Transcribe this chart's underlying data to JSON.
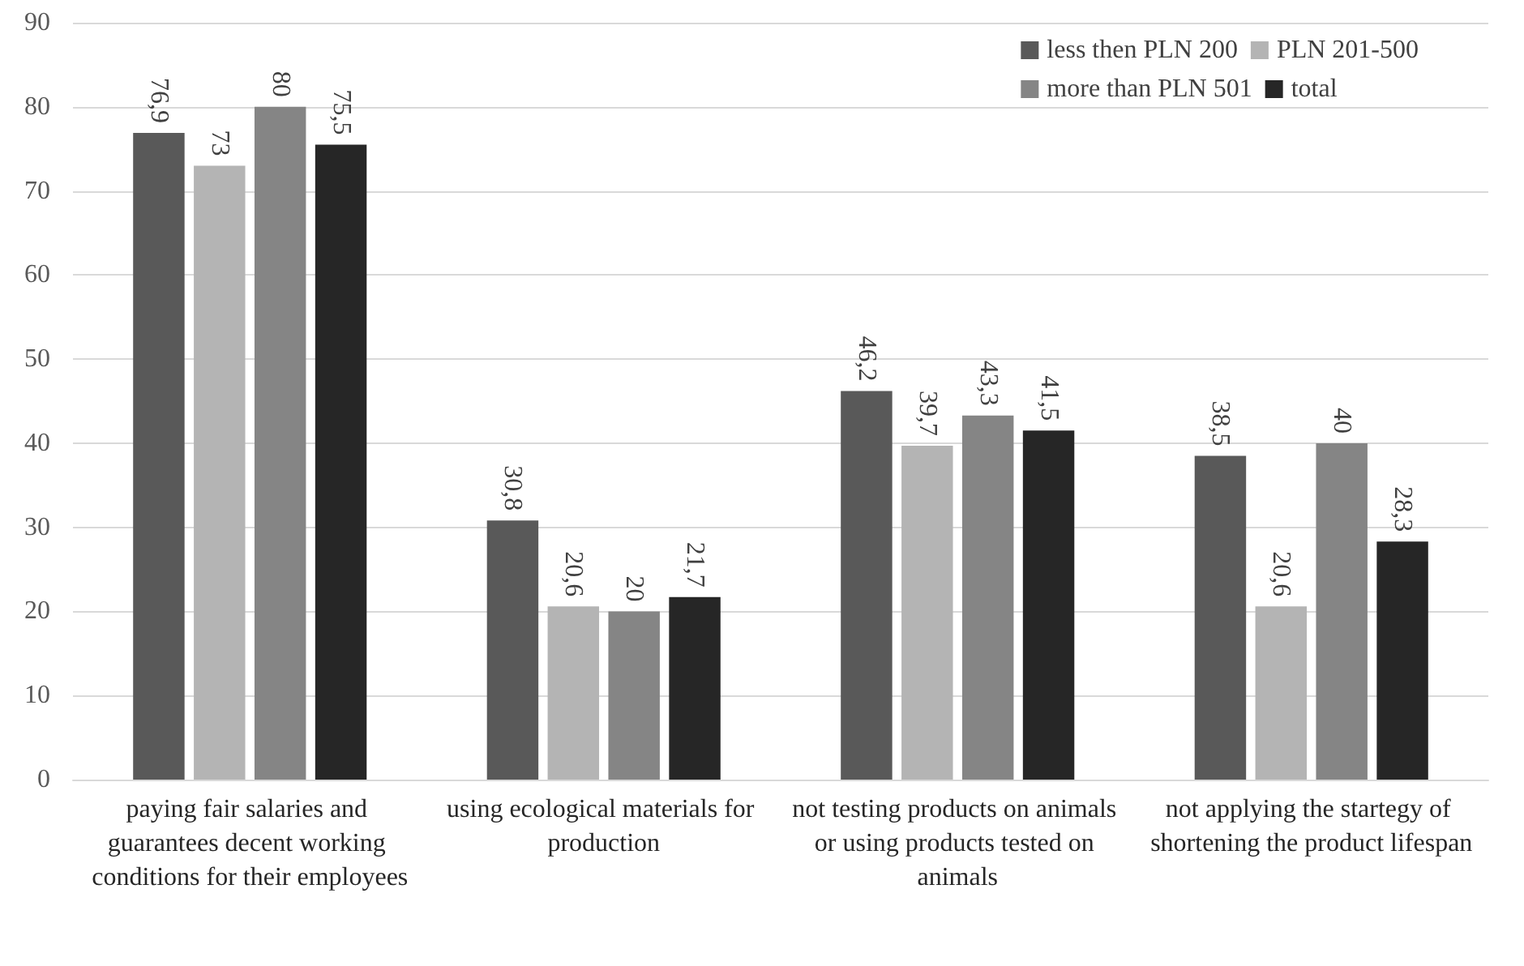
{
  "chart_data": {
    "type": "bar",
    "categories": [
      "paying fair salaries and guarantees decent working conditions for their employees",
      "using ecological materials for production",
      "not testing products on animals or using products tested on animals",
      "not applying the startegy of shortening the product lifespan"
    ],
    "series": [
      {
        "name": "less then PLN 200",
        "color": "#595959",
        "values": [
          76.9,
          30.8,
          46.2,
          38.5
        ],
        "value_labels": [
          "76,9",
          "30,8",
          "46,2",
          "38,5"
        ]
      },
      {
        "name": "PLN 201-500",
        "color": "#b4b4b4",
        "values": [
          73,
          20.6,
          39.7,
          20.6
        ],
        "value_labels": [
          "73",
          "20,6",
          "39,7",
          "20,6"
        ]
      },
      {
        "name": "more than PLN 501",
        "color": "#858585",
        "values": [
          80,
          20,
          43.3,
          40
        ],
        "value_labels": [
          "80",
          "20",
          "43,3",
          "40"
        ]
      },
      {
        "name": "total",
        "color": "#262626",
        "values": [
          75.5,
          21.7,
          41.5,
          28.3
        ],
        "value_labels": [
          "75,5",
          "21,7",
          "41,5",
          "28,3"
        ]
      }
    ],
    "ylim": [
      0,
      90
    ],
    "yticks": [
      0,
      10,
      20,
      30,
      40,
      50,
      60,
      70,
      80,
      90
    ],
    "grid": "y",
    "legend": "top right"
  }
}
